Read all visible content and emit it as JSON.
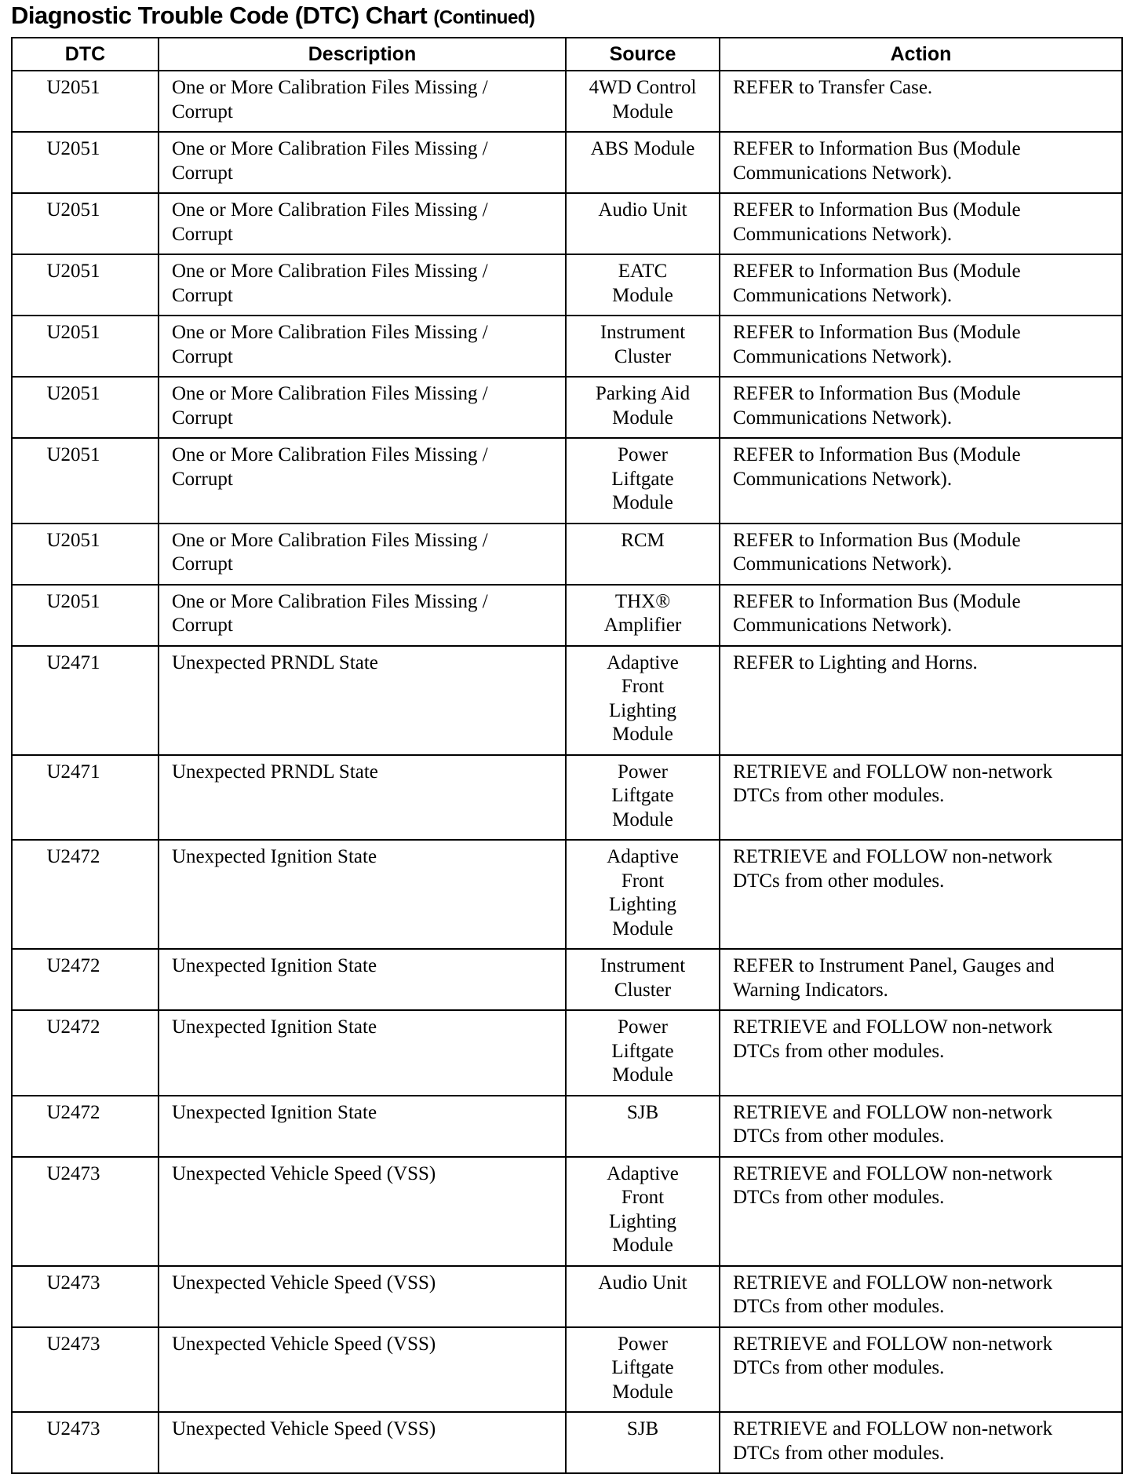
{
  "title": "Diagnostic Trouble Code (DTC) Chart",
  "title_suffix": "(Continued)",
  "columns": [
    "DTC",
    "Description",
    "Source",
    "Action"
  ],
  "rows": [
    {
      "dtc": "U2051",
      "description": "One or More Calibration Files Missing /\nCorrupt",
      "source": "4WD Control\nModule",
      "action": "REFER to Transfer Case."
    },
    {
      "dtc": "U2051",
      "description": "One or More Calibration Files Missing /\nCorrupt",
      "source": "ABS Module",
      "action": "REFER to Information Bus (Module\nCommunications Network)."
    },
    {
      "dtc": "U2051",
      "description": "One or More Calibration Files Missing /\nCorrupt",
      "source": "Audio Unit",
      "action": "REFER to Information Bus (Module\nCommunications Network)."
    },
    {
      "dtc": "U2051",
      "description": "One or More Calibration Files Missing /\nCorrupt",
      "source": "EATC\nModule",
      "action": "REFER to Information Bus (Module\nCommunications Network)."
    },
    {
      "dtc": "U2051",
      "description": "One or More Calibration Files Missing /\nCorrupt",
      "source": "Instrument\nCluster",
      "action": "REFER to Information Bus (Module\nCommunications Network)."
    },
    {
      "dtc": "U2051",
      "description": "One or More Calibration Files Missing /\nCorrupt",
      "source": "Parking Aid\nModule",
      "action": "REFER to Information Bus (Module\nCommunications Network)."
    },
    {
      "dtc": "U2051",
      "description": "One or More Calibration Files Missing /\nCorrupt",
      "source": "Power\nLiftgate\nModule",
      "action": "REFER to Information Bus (Module\nCommunications Network)."
    },
    {
      "dtc": "U2051",
      "description": "One or More Calibration Files Missing /\nCorrupt",
      "source": "RCM",
      "action": "REFER to Information Bus (Module\nCommunications Network)."
    },
    {
      "dtc": "U2051",
      "description": "One or More Calibration Files Missing /\nCorrupt",
      "source": "THX®\nAmplifier",
      "action": "REFER to Information Bus (Module\nCommunications Network)."
    },
    {
      "dtc": "U2471",
      "description": "Unexpected PRNDL State",
      "source": "Adaptive\nFront\nLighting\nModule",
      "action": "REFER to Lighting and Horns."
    },
    {
      "dtc": "U2471",
      "description": "Unexpected PRNDL State",
      "source": "Power\nLiftgate\nModule",
      "action": "RETRIEVE and FOLLOW non-network\nDTCs from other modules."
    },
    {
      "dtc": "U2472",
      "description": "Unexpected Ignition State",
      "source": "Adaptive\nFront\nLighting\nModule",
      "action": "RETRIEVE and FOLLOW non-network\nDTCs from other modules."
    },
    {
      "dtc": "U2472",
      "description": "Unexpected Ignition State",
      "source": "Instrument\nCluster",
      "action": "REFER to Instrument Panel, Gauges and\nWarning Indicators."
    },
    {
      "dtc": "U2472",
      "description": "Unexpected Ignition State",
      "source": "Power\nLiftgate\nModule",
      "action": "RETRIEVE and FOLLOW non-network\nDTCs from other modules."
    },
    {
      "dtc": "U2472",
      "description": "Unexpected Ignition State",
      "source": "SJB",
      "action": "RETRIEVE and FOLLOW non-network\nDTCs from other modules."
    },
    {
      "dtc": "U2473",
      "description": "Unexpected Vehicle Speed (VSS)",
      "source": "Adaptive\nFront\nLighting\nModule",
      "action": "RETRIEVE and FOLLOW non-network\nDTCs from other modules."
    },
    {
      "dtc": "U2473",
      "description": "Unexpected Vehicle Speed (VSS)",
      "source": "Audio Unit",
      "action": "RETRIEVE and FOLLOW non-network\nDTCs from other modules."
    },
    {
      "dtc": "U2473",
      "description": "Unexpected Vehicle Speed (VSS)",
      "source": "Power\nLiftgate\nModule",
      "action": "RETRIEVE and FOLLOW non-network\nDTCs from other modules."
    },
    {
      "dtc": "U2473",
      "description": "Unexpected Vehicle Speed (VSS)",
      "source": "SJB",
      "action": "RETRIEVE and FOLLOW non-network\nDTCs from other modules."
    }
  ]
}
